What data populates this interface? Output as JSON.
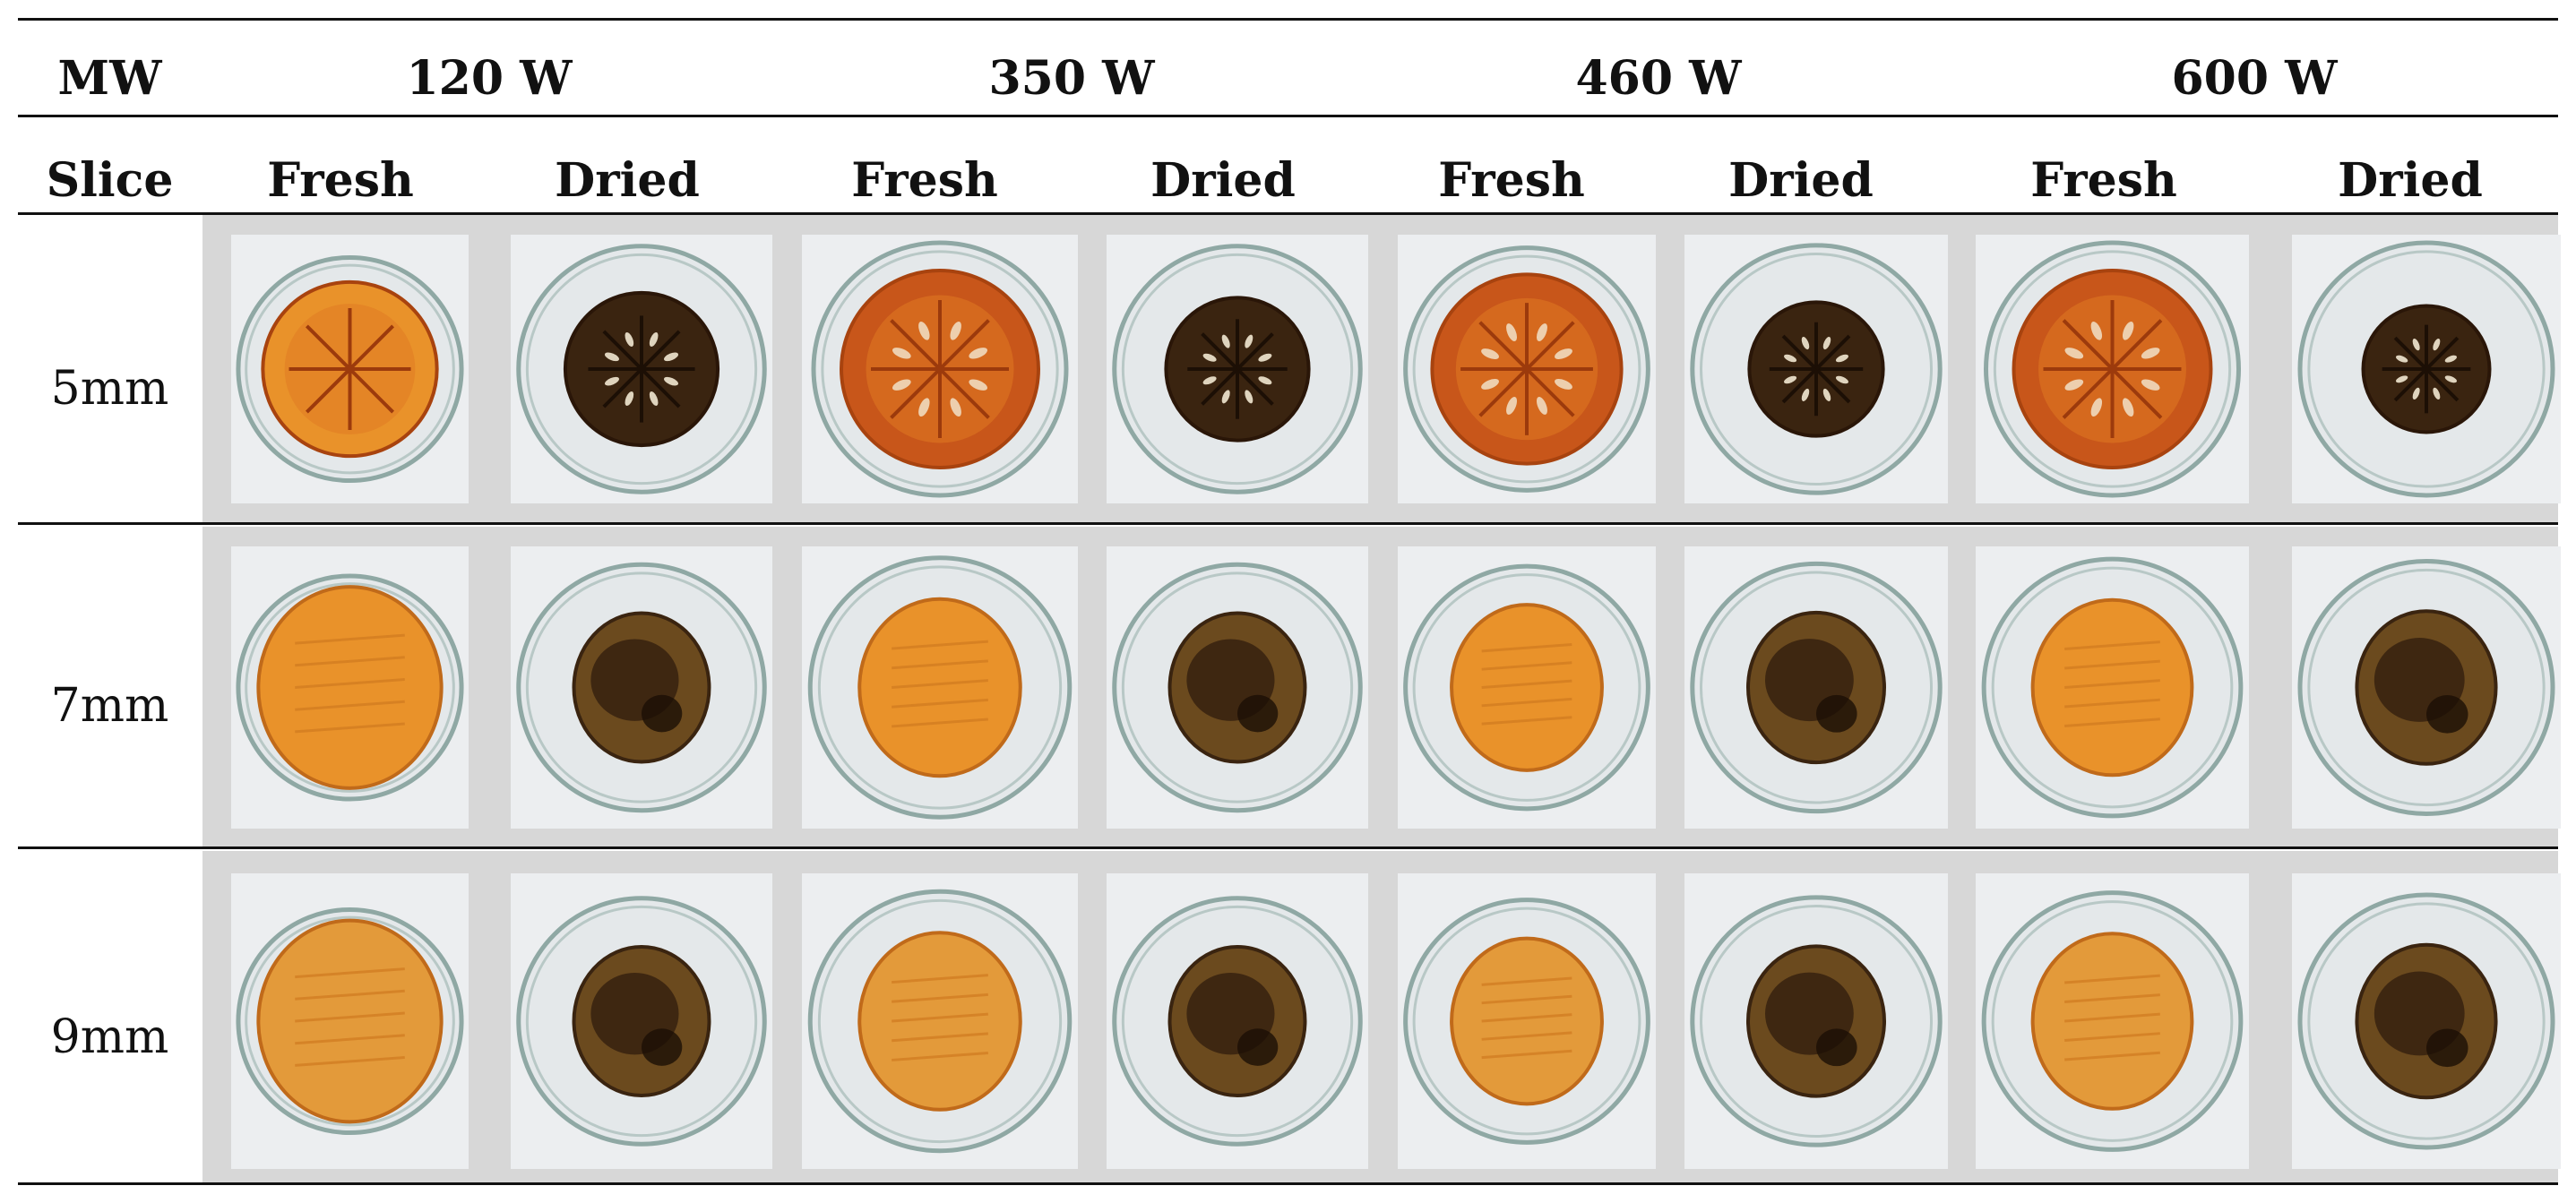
{
  "header": {
    "mw_label": "MW",
    "slice_label": "Slice",
    "powers": [
      "120 W",
      "350 W",
      "460 W",
      "600 W"
    ],
    "states": [
      "Fresh",
      "Dried",
      "Fresh",
      "Dried",
      "Fresh",
      "Dried",
      "Fresh",
      "Dried"
    ]
  },
  "rows": [
    {
      "label": "5mm",
      "pattern": "rings"
    },
    {
      "label": "7mm",
      "pattern": "slices"
    },
    {
      "label": "9mm",
      "pattern": "slices"
    }
  ],
  "colors": {
    "fresh_orange": "#e9922a",
    "fresh_dark_orange": "#c8561a",
    "dried_brown": "#3a2410",
    "table_grey": "#d7d7d7",
    "dish_background": "#eceef0"
  }
}
